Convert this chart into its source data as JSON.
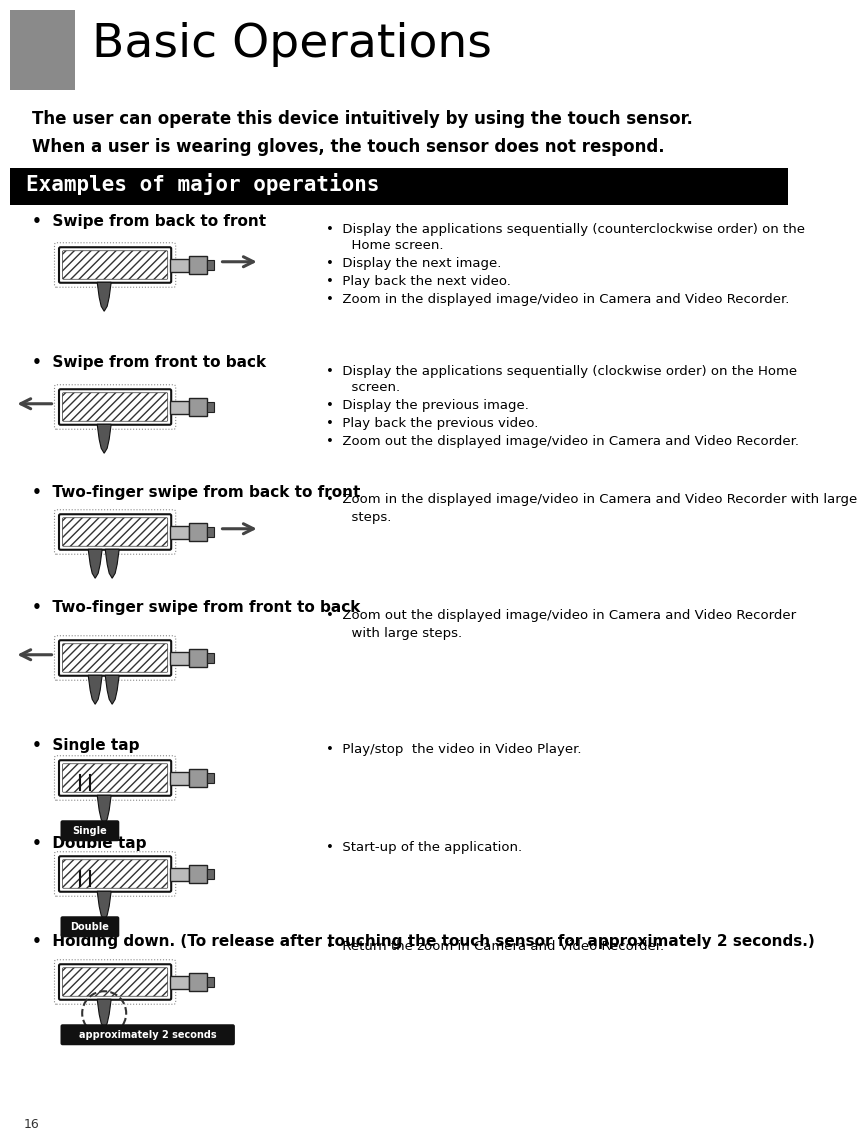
{
  "page_number": "16",
  "title": "Basic Operations",
  "intro_line1": "The user can operate this device intuitively by using the touch sensor.",
  "intro_line2": "When a user is wearing gloves, the touch sensor does not respond.",
  "section_header": "Examples of major operations",
  "items": [
    {
      "label": "Swipe from back to front",
      "descs": [
        "Display the applications sequentially (counterclockwise order) on the\n    Home screen.",
        "Display the next image.",
        "Play back the next video.",
        "Zoom in the displayed image/video in Camera and Video Recorder."
      ],
      "arrow": "right",
      "two_finger": false,
      "hold": false,
      "badge": null
    },
    {
      "label": "Swipe from front to back",
      "descs": [
        "Display the applications sequentially (clockwise order) on the Home\n    screen.",
        "Display the previous image.",
        "Play back the previous video.",
        "Zoom out the displayed image/video in Camera and Video Recorder."
      ],
      "arrow": "left",
      "two_finger": false,
      "hold": false,
      "badge": null
    },
    {
      "label": "Two-finger swipe from back to front",
      "descs": [
        "Zoom in the displayed image/video in Camera and Video Recorder with large\n    steps."
      ],
      "arrow": "right",
      "two_finger": true,
      "hold": false,
      "badge": null
    },
    {
      "label": "Two-finger swipe from front to back",
      "descs": [
        "Zoom out the displayed image/video in Camera and Video Recorder\n    with large steps."
      ],
      "arrow": "left",
      "two_finger": true,
      "hold": false,
      "badge": null
    },
    {
      "label": "Single tap",
      "descs": [
        "Play/stop  the video in Video Player."
      ],
      "arrow": null,
      "two_finger": false,
      "hold": false,
      "badge": "Single"
    },
    {
      "label": "Double tap",
      "descs": [
        "Start-up of the application."
      ],
      "arrow": null,
      "two_finger": false,
      "hold": false,
      "badge": "Double"
    },
    {
      "label": "Holding down. (To release after touching the touch sensor for approximately 2 seconds.)",
      "descs": [
        "Return the zoom in Camera and Video Recorder."
      ],
      "arrow": null,
      "two_finger": false,
      "hold": true,
      "badge": "approximately 2 seconds"
    }
  ]
}
